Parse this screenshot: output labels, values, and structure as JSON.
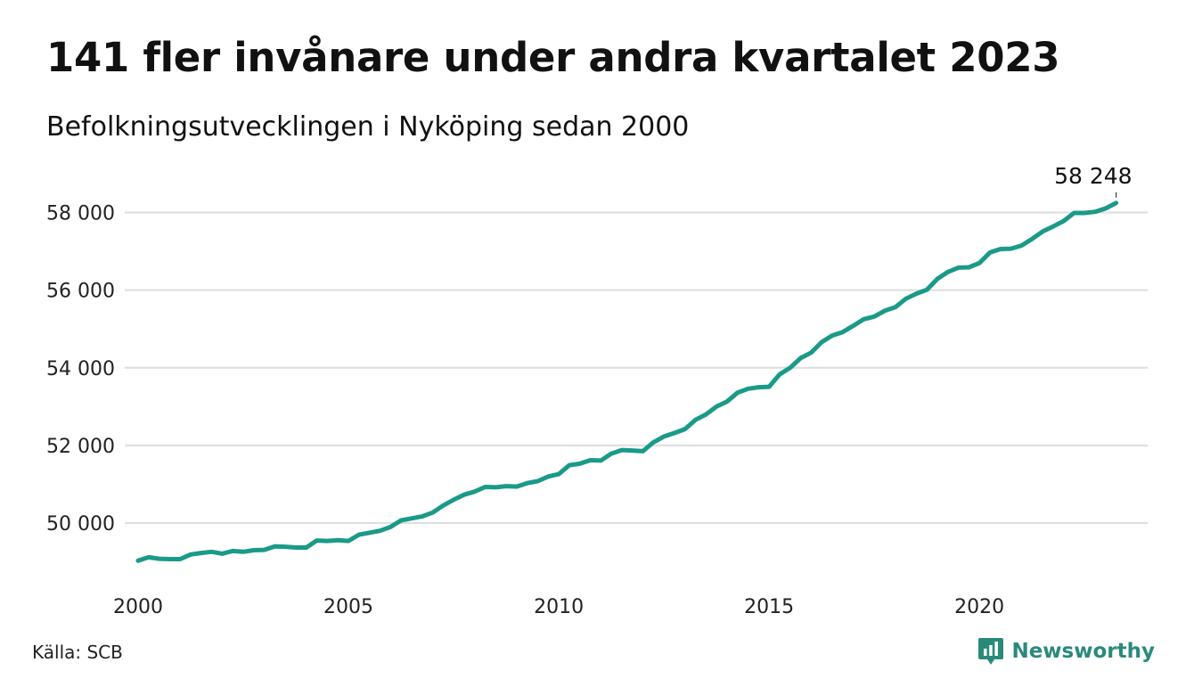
{
  "header": {
    "title": "141 fler invånare under andra kvartalet 2023",
    "subtitle": "Befolkningsutvecklingen i Nyköping sedan 2000"
  },
  "footer": {
    "source": "Källa: SCB",
    "brand": "Newsworthy",
    "brand_icon": "bar-chart-speech-bubble-icon"
  },
  "colors": {
    "line": "#1a9a88",
    "grid": "#dddddd",
    "brand": "#2a8a7a"
  },
  "chart_data": {
    "type": "line",
    "title": "141 fler invånare under andra kvartalet 2023",
    "subtitle": "Befolkningsutvecklingen i Nyköping sedan 2000",
    "xlabel": "",
    "ylabel": "",
    "x_ticks": [
      2000,
      2005,
      2010,
      2015,
      2020
    ],
    "x_tick_labels": [
      "2000",
      "2005",
      "2010",
      "2015",
      "2020"
    ],
    "y_ticks": [
      50000,
      52000,
      54000,
      56000,
      58000
    ],
    "y_tick_labels": [
      "50 000",
      "52 000",
      "54 000",
      "56 000",
      "58 000"
    ],
    "xlim": [
      2000,
      2024
    ],
    "ylim": [
      48600,
      59000
    ],
    "grid": "horizontal",
    "end_label": "58 248",
    "series": [
      {
        "x": [
          2000.0,
          2000.25,
          2000.5,
          2000.75,
          2001.0,
          2001.25,
          2001.5,
          2001.75,
          2002.0,
          2002.25,
          2002.5,
          2002.75,
          2003.0,
          2003.25,
          2003.5,
          2003.75,
          2004.0,
          2004.25,
          2004.5,
          2004.75,
          2005.0,
          2005.25,
          2005.5,
          2005.75,
          2006.0,
          2006.25,
          2006.5,
          2006.75,
          2007.0,
          2007.25,
          2007.5,
          2007.75,
          2008.0,
          2008.25,
          2008.5,
          2008.75,
          2009.0,
          2009.25,
          2009.5,
          2009.75,
          2010.0,
          2010.25,
          2010.5,
          2010.75,
          2011.0,
          2011.25,
          2011.5,
          2011.75,
          2012.0,
          2012.25,
          2012.5,
          2012.75,
          2013.0,
          2013.25,
          2013.5,
          2013.75,
          2014.0,
          2014.25,
          2014.5,
          2014.75,
          2015.0,
          2015.25,
          2015.5,
          2015.75,
          2016.0,
          2016.25,
          2016.5,
          2016.75,
          2017.0,
          2017.25,
          2017.5,
          2017.75,
          2018.0,
          2018.25,
          2018.5,
          2018.75,
          2019.0,
          2019.25,
          2019.5,
          2019.75,
          2020.0,
          2020.25,
          2020.5,
          2020.75,
          2021.0,
          2021.25,
          2021.5,
          2021.75,
          2022.0,
          2022.25,
          2022.5,
          2022.75,
          2023.0,
          2023.25
        ],
        "values": [
          49030,
          49120,
          49080,
          49070,
          49070,
          49190,
          49230,
          49260,
          49210,
          49280,
          49260,
          49300,
          49310,
          49400,
          49390,
          49370,
          49370,
          49550,
          49540,
          49560,
          49540,
          49700,
          49750,
          49800,
          49900,
          50070,
          50120,
          50170,
          50270,
          50450,
          50600,
          50730,
          50810,
          50930,
          50920,
          50950,
          50940,
          51030,
          51080,
          51200,
          51260,
          51490,
          51530,
          51620,
          51610,
          51790,
          51880,
          51870,
          51850,
          52080,
          52230,
          52320,
          52420,
          52660,
          52800,
          53000,
          53130,
          53360,
          53460,
          53500,
          53510,
          53830,
          54000,
          54250,
          54390,
          54660,
          54830,
          54920,
          55080,
          55250,
          55320,
          55470,
          55560,
          55780,
          55910,
          56010,
          56290,
          56470,
          56580,
          56590,
          56700,
          56970,
          57060,
          57070,
          57150,
          57320,
          57510,
          57640,
          57780,
          57990,
          57990,
          58020,
          58107,
          58248
        ]
      }
    ]
  }
}
